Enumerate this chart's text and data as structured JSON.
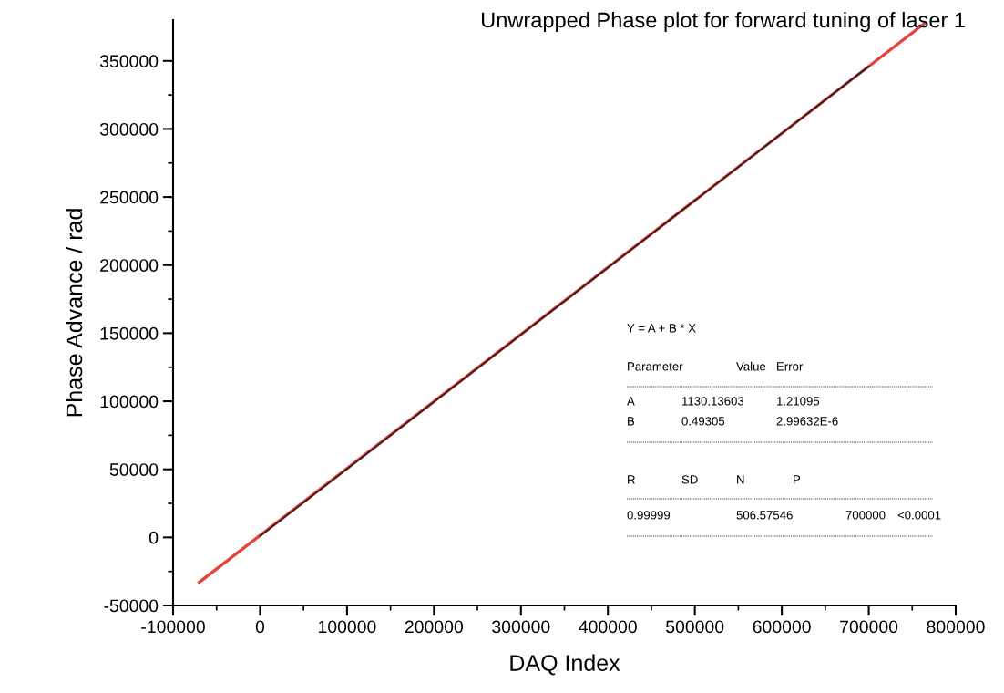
{
  "chart_data": {
    "type": "line",
    "title": "Unwrapped Phase plot for forward tuning of laser 1",
    "xlabel": "DAQ Index",
    "ylabel": "Phase Advance / rad",
    "series": [
      {
        "color": "#e8403a",
        "x": [
          -70000,
          765000
        ],
        "values": [
          -33000,
          378000
        ]
      },
      {
        "color": "#222222",
        "x": [
          0,
          700000
        ],
        "values": [
          1000,
          346000
        ]
      }
    ],
    "xlim": [
      -100000,
      800000
    ],
    "ylim": [
      -50000,
      380000
    ],
    "xticks": [
      -100000,
      0,
      100000,
      200000,
      300000,
      400000,
      500000,
      600000,
      700000,
      800000
    ],
    "yticks": [
      -50000,
      0,
      50000,
      100000,
      150000,
      200000,
      250000,
      300000,
      350000
    ],
    "grid": false,
    "legend": false,
    "marker": "none",
    "line_style": "solid",
    "annotations": [
      "Y = A + B * X",
      "Parameter",
      "Value",
      "Error",
      "A",
      "1130.13603",
      "1.21095",
      "B",
      "0.49305",
      "2.99632E-6",
      "R",
      "SD",
      "N",
      "P",
      "0.99999",
      "506.57546",
      "700000",
      "<0.0001"
    ]
  }
}
